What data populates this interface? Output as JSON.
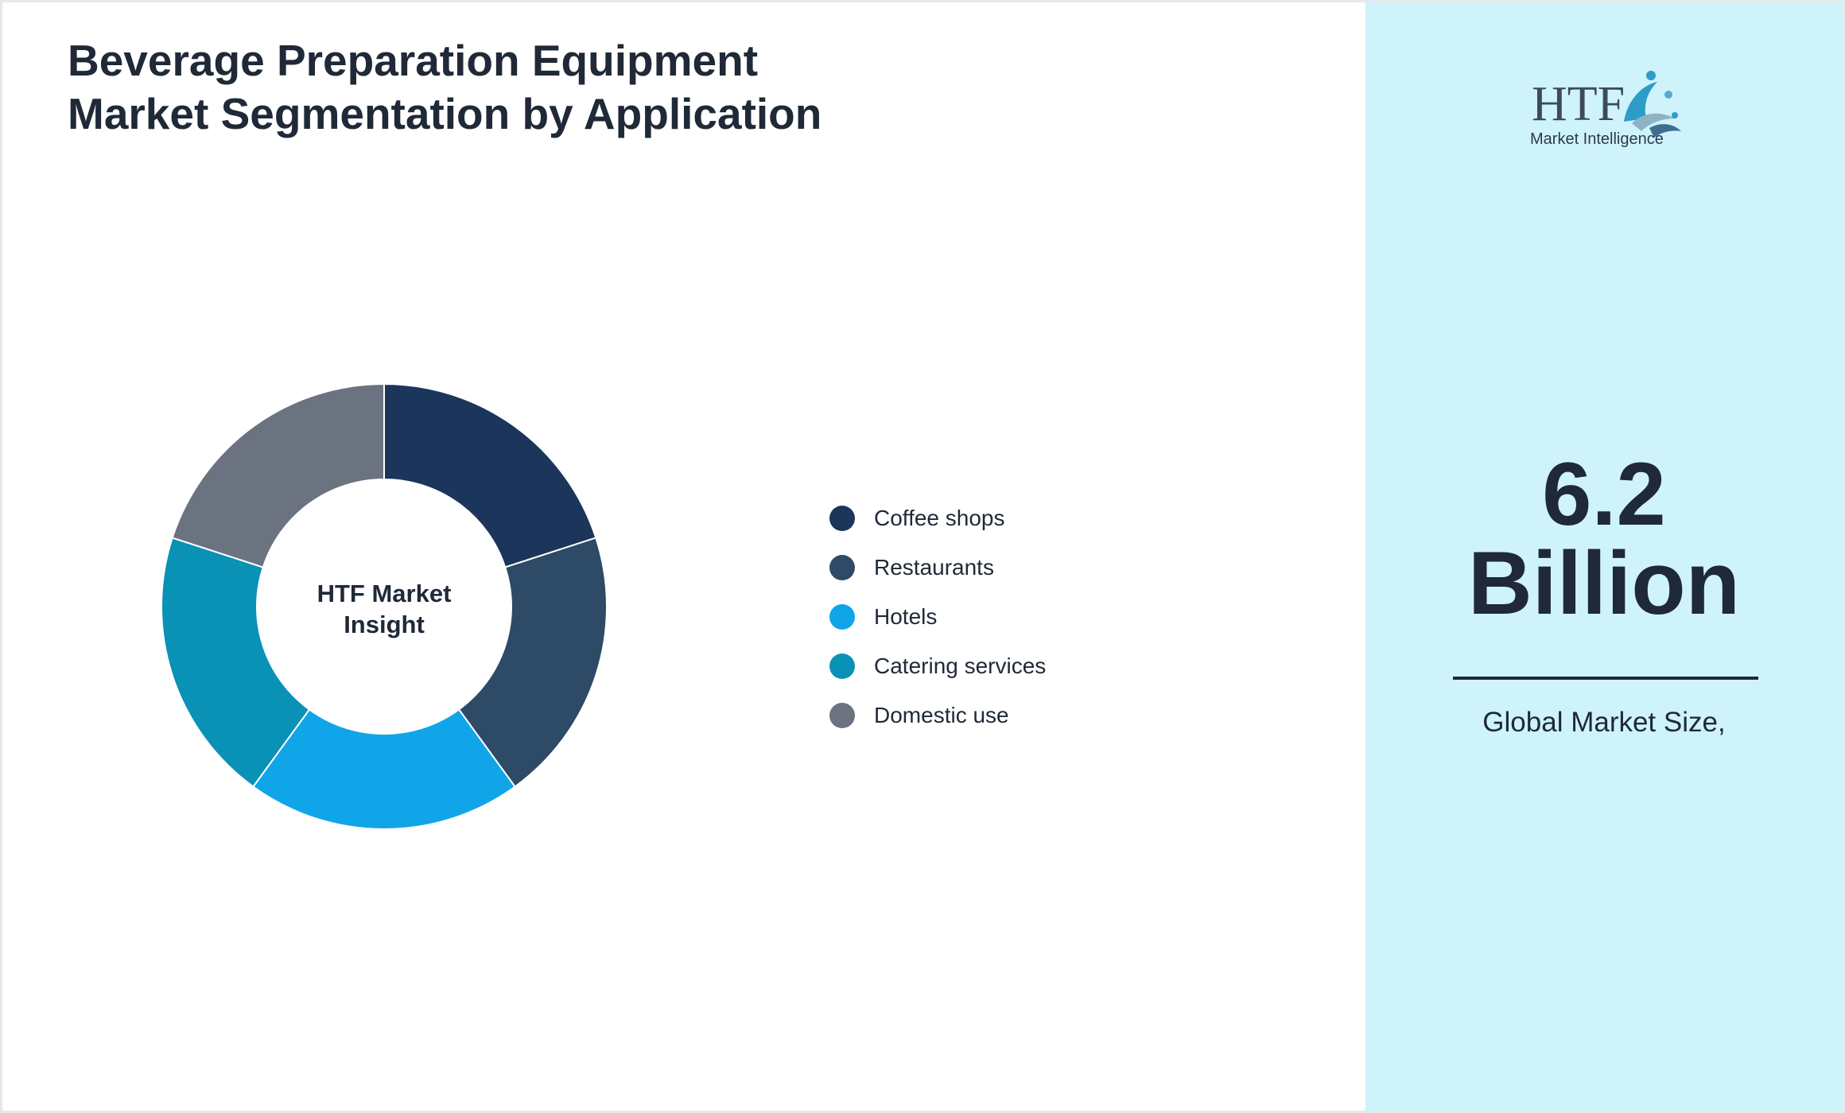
{
  "title": "Beverage Preparation Equipment Market Segmentation by Application",
  "chart_data": {
    "type": "pie",
    "variant": "donut",
    "center_label": [
      "HTF Market",
      "Insight"
    ],
    "legend_placement": "right",
    "slices": [
      {
        "label": "Coffee shops",
        "value": 20,
        "color": "#1b355b"
      },
      {
        "label": "Restaurants",
        "value": 20,
        "color": "#2d4a66"
      },
      {
        "label": "Hotels",
        "value": 20,
        "color": "#10a5e8"
      },
      {
        "label": "Catering services",
        "value": 20,
        "color": "#0a91b6"
      },
      {
        "label": "Domestic use",
        "value": 20,
        "color": "#6b7280"
      }
    ]
  },
  "side_panel": {
    "logo": {
      "monogram": "HTF",
      "tagline": "Market Intelligence"
    },
    "market_value": "6.2",
    "market_unit": "Billion",
    "caption": "Global Market Size,"
  },
  "colors": {
    "side_panel_background": "#cff3fa",
    "text": "#1f2937"
  }
}
